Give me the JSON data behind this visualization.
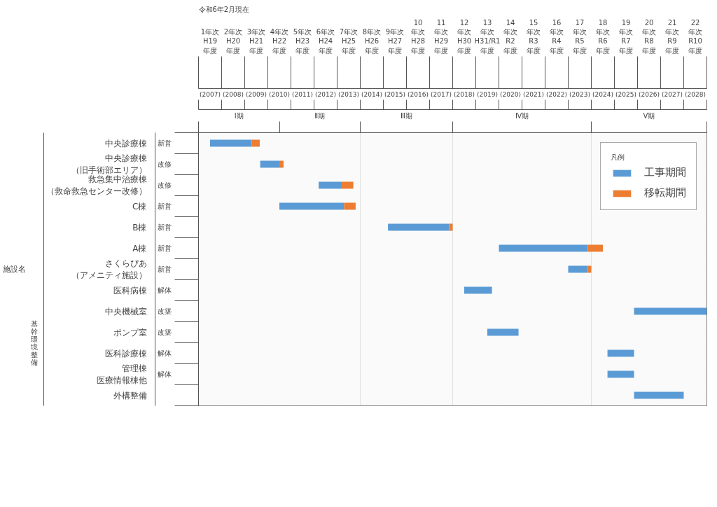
{
  "chart_data": {
    "type": "bar",
    "orientation": "horizontal",
    "ylabel": "施設名",
    "legend_title": "凡例",
    "legend": "top right",
    "grid": true,
    "categories": [
      "中央診療棟",
      "中央診療棟（旧手術部エリア）",
      "救急集中治療棟（救命救急センター改修）",
      "C棟",
      "B棟",
      "A棟",
      "さくらぴあ（アメニティ施設）",
      "医科病棟",
      "中央機械室",
      "ポンプ室",
      "医科診療棟",
      "管理棟医療情報棟他",
      "外構整備"
    ],
    "series": [
      {
        "name": "工事期間",
        "color": "#5b9bd5",
        "base": [
          2007.0,
          2009.17,
          2011.7,
          2010.0,
          2014.7,
          2019.5,
          2022.5,
          2018.0,
          2025.35,
          2019.0,
          2024.2,
          2024.2,
          2025.35
        ],
        "values": [
          1.8,
          0.83,
          1.0,
          2.8,
          2.65,
          3.85,
          0.85,
          1.2,
          3.15,
          1.35,
          1.15,
          1.15,
          2.15
        ]
      },
      {
        "name": "移転期間",
        "color": "#ed7d31",
        "base": [
          2008.8,
          2010.0,
          2012.7,
          2012.8,
          2017.35,
          2023.35,
          2023.35,
          null,
          null,
          null,
          null,
          null,
          null
        ],
        "values": [
          0.35,
          0.18,
          0.5,
          0.5,
          0.15,
          0.65,
          0.15,
          null,
          null,
          null,
          null,
          null,
          null
        ]
      }
    ],
    "xlim": [
      2006.5,
      2028.5
    ],
    "xticks": [
      {
        "value": 2006.5,
        "label": null
      },
      {
        "value": 2007.5,
        "label": null
      },
      {
        "value": 2008.5,
        "label": null
      },
      {
        "value": 2009.5,
        "label": null
      },
      {
        "value": 2010.5,
        "label": null
      },
      {
        "value": 2011.5,
        "label": null
      },
      {
        "value": 2012.5,
        "label": null
      },
      {
        "value": 2013.5,
        "label": null
      },
      {
        "value": 2014.5,
        "label": null
      },
      {
        "value": 2015.5,
        "label": null
      },
      {
        "value": 2016.5,
        "label": null
      },
      {
        "value": 2017.5,
        "label": null
      },
      {
        "value": 2018.5,
        "label": null
      },
      {
        "value": 2019.5,
        "label": null
      },
      {
        "value": 2020.5,
        "label": null
      },
      {
        "value": 2021.5,
        "label": null
      },
      {
        "value": 2022.5,
        "label": null
      },
      {
        "value": 2023.5,
        "label": null
      },
      {
        "value": 2024.5,
        "label": null
      },
      {
        "value": 2025.5,
        "label": null
      },
      {
        "value": 2026.5,
        "label": null
      },
      {
        "value": 2027.5,
        "label": null
      },
      {
        "value": 2028.5,
        "label": null
      },
      {
        "value": 2007,
        "label": "(2007)"
      },
      {
        "value": 2008,
        "label": "(2008)"
      },
      {
        "value": 2009,
        "label": "(2009)"
      },
      {
        "value": 2010,
        "label": "(2010)"
      },
      {
        "value": 2011,
        "label": "(2011)"
      },
      {
        "value": 2012,
        "label": "(2012)"
      },
      {
        "value": 2013,
        "label": "(2013)"
      },
      {
        "value": 2014,
        "label": "(2014)"
      },
      {
        "value": 2015,
        "label": "(2015)"
      },
      {
        "value": 2016,
        "label": "(2016)"
      },
      {
        "value": 2017,
        "label": "(2017)"
      },
      {
        "value": 2018,
        "label": "(2018)"
      },
      {
        "value": 2019,
        "label": "(2019)"
      },
      {
        "value": 2020,
        "label": "(2020)"
      },
      {
        "value": 2021,
        "label": "(2021)"
      },
      {
        "value": 2022,
        "label": "(2022)"
      },
      {
        "value": 2023,
        "label": "(2023)"
      },
      {
        "value": 2024,
        "label": "(2024)"
      },
      {
        "value": 2025,
        "label": "(2025)"
      },
      {
        "value": 2026,
        "label": "(2026)"
      },
      {
        "value": 2027,
        "label": "(2027)"
      },
      {
        "value": 2028,
        "label": "(2028)"
      }
    ],
    "bands": [
      {
        "axis": "x",
        "from": 2006.5,
        "to": 2010,
        "label": "Ⅰ期",
        "color": "#fafafa"
      },
      {
        "axis": "x",
        "from": 2010,
        "to": 2013.5,
        "label": "Ⅱ期",
        "color": "#fafafa"
      },
      {
        "axis": "x",
        "from": 2013.5,
        "to": 2017.5,
        "label": "Ⅲ期",
        "color": "#fafafa"
      },
      {
        "axis": "x",
        "from": 2017.5,
        "to": 2023.5,
        "label": "Ⅳ期",
        "color": "#fafafa"
      },
      {
        "axis": "x",
        "from": 2023.5,
        "to": 2028.5,
        "label": "Ⅴ期",
        "color": "#fafafa"
      }
    ],
    "annotations": [
      "令和6年2月現在",
      "基幹環境整備",
      "新営",
      "改修",
      "改修",
      "新営",
      "新営",
      "新営",
      "新営",
      "解体",
      "改築",
      "改築",
      "解体",
      "解体",
      "1年次\nH19年度",
      "2年次\nH20年度",
      "3年次\nH21年度",
      "4年次\nH22年度",
      "5年次\nH23年度",
      "6年次\nH24年度",
      "7年次\nH25年度",
      "8年次\nH26年度",
      "9年次\nH27年度",
      "10年次\nH28年度",
      "11年次\nH29年度",
      "12年次\nH30年度",
      "13年次\nH31/R1年度",
      "14年次\nR2年度",
      "15年次\nR3年度",
      "16年次\nR4年度",
      "17年次\nR5年度",
      "18年次\nR6年度",
      "19年次\nR7年度",
      "20年次\nR8年度",
      "21年次\nR9年度",
      "22年次\nR10年度"
    ]
  }
}
